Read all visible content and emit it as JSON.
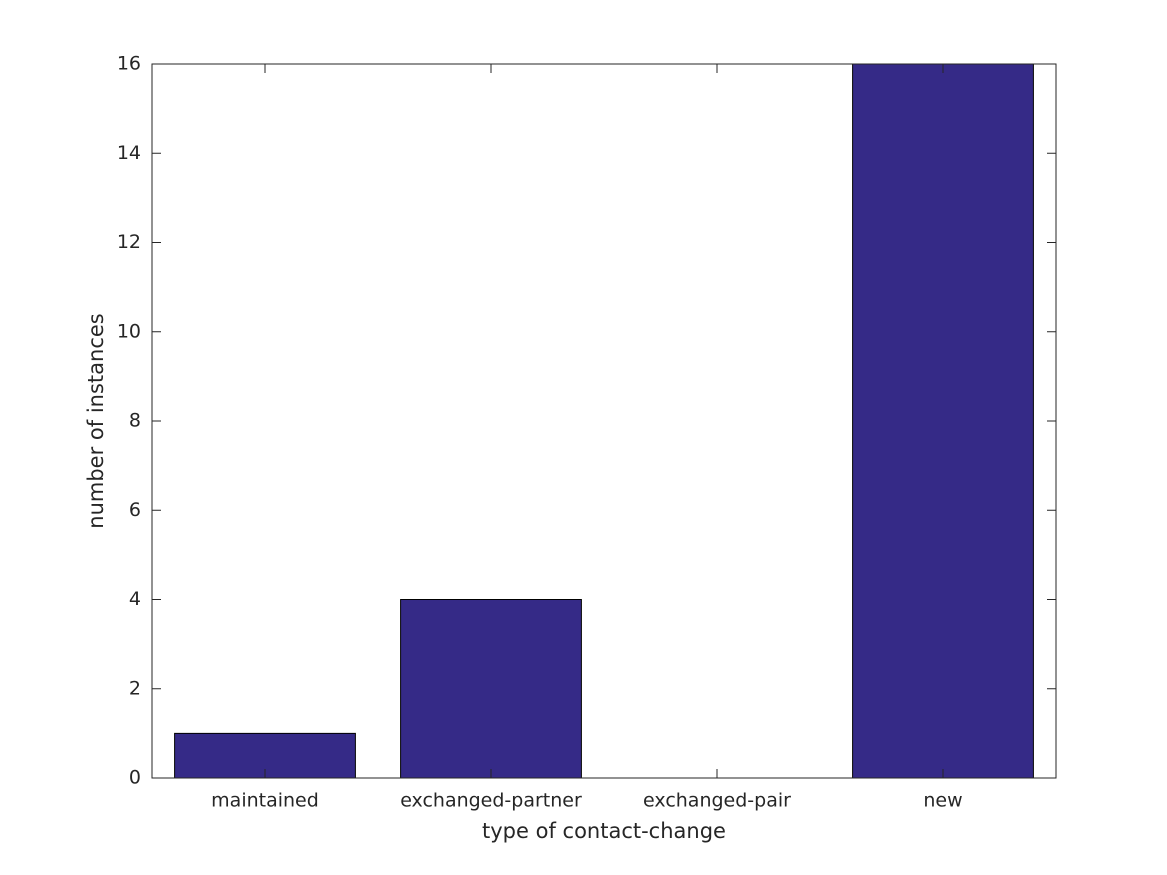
{
  "chart_data": {
    "type": "bar",
    "xlabel": "type of contact-change",
    "ylabel": "number of instances",
    "categories": [
      "maintained",
      "exchanged-partner",
      "exchanged-pair",
      "new"
    ],
    "values": [
      1,
      4,
      0,
      16
    ],
    "color": "#352a87",
    "ylim": [
      0,
      16
    ],
    "yticks": [
      0,
      2,
      4,
      6,
      8,
      10,
      12,
      14,
      16
    ],
    "grid": false
  }
}
